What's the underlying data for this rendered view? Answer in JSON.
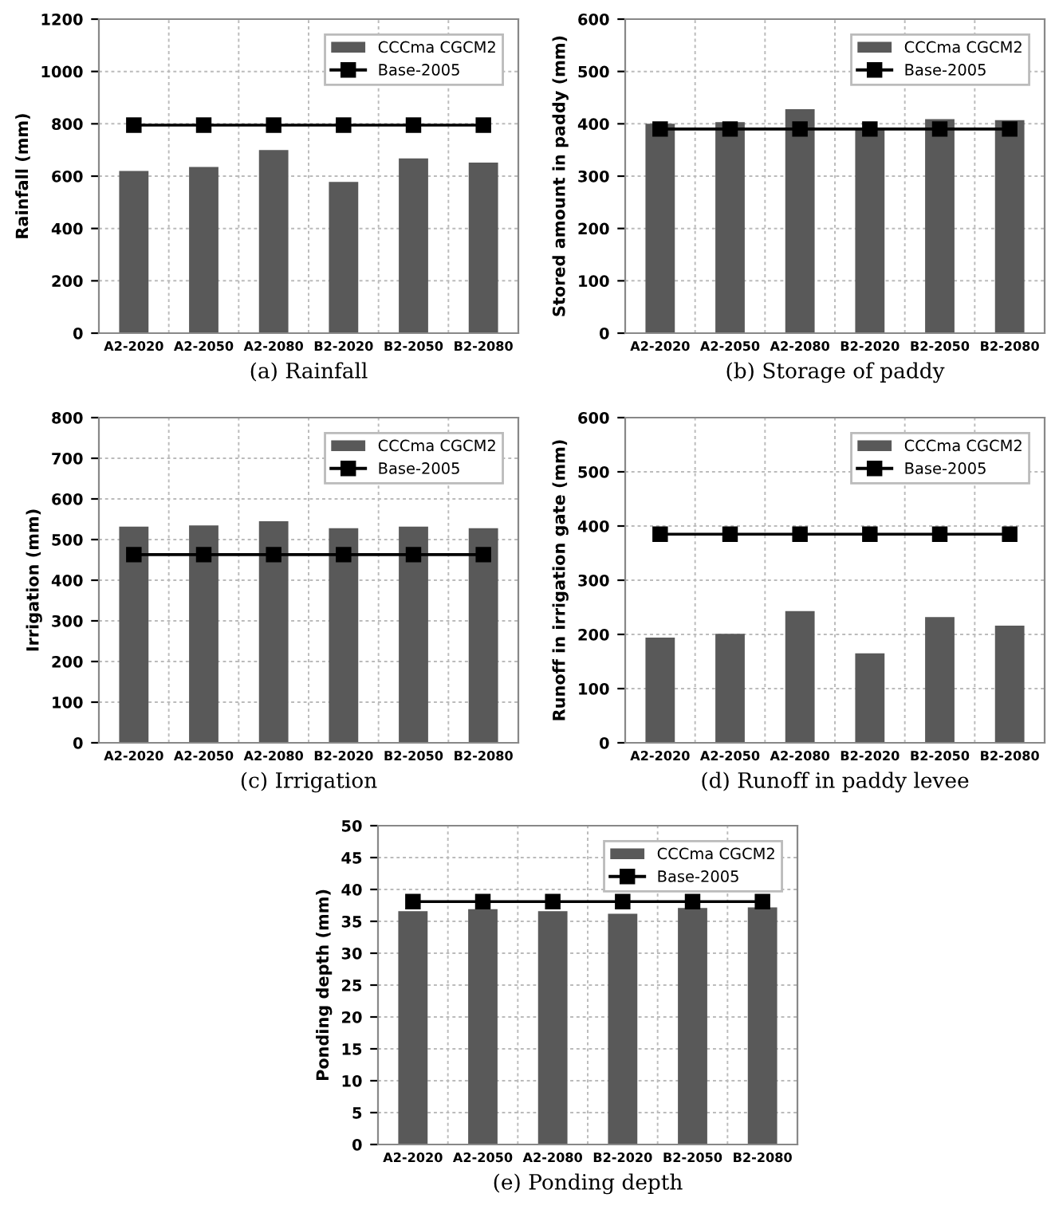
{
  "chart_data": [
    {
      "type": "bar",
      "title": "(a) Rainfall",
      "ylabel": "Rainfall (mm)",
      "categories": [
        "A2-2020",
        "A2-2050",
        "A2-2080",
        "B2-2020",
        "B2-2050",
        "B2-2080"
      ],
      "ylim": [
        0,
        1200
      ],
      "yticks": [
        0,
        200,
        400,
        600,
        800,
        1000,
        1200
      ],
      "grid": true,
      "legend": "top right",
      "series": [
        {
          "name": "CCCma CGCM2",
          "color": "#595959",
          "values": [
            620,
            635,
            700,
            578,
            668,
            652
          ]
        },
        {
          "name": "Base-2005",
          "type": "line",
          "color": "#000000",
          "marker": "square",
          "line_style": "solid",
          "values": [
            795,
            795,
            795,
            795,
            795,
            795
          ]
        }
      ]
    },
    {
      "type": "bar",
      "title": "(b) Storage of paddy",
      "ylabel": "Stored amount in paddy (mm)",
      "categories": [
        "A2-2020",
        "A2-2050",
        "A2-2080",
        "B2-2020",
        "B2-2050",
        "B2-2080"
      ],
      "ylim": [
        0,
        600
      ],
      "yticks": [
        0,
        100,
        200,
        300,
        400,
        500,
        600
      ],
      "grid": true,
      "legend": "top right",
      "series": [
        {
          "name": "CCCma CGCM2",
          "color": "#595959",
          "values": [
            400,
            403,
            428,
            390,
            409,
            407
          ]
        },
        {
          "name": "Base-2005",
          "type": "line",
          "color": "#000000",
          "marker": "square",
          "line_style": "solid",
          "values": [
            390,
            390,
            390,
            390,
            390,
            390
          ]
        }
      ]
    },
    {
      "type": "bar",
      "title": "(c) Irrigation",
      "ylabel": "Irrigation (mm)",
      "categories": [
        "A2-2020",
        "A2-2050",
        "A2-2080",
        "B2-2020",
        "B2-2050",
        "B2-2080"
      ],
      "ylim": [
        0,
        800
      ],
      "yticks": [
        0,
        100,
        200,
        300,
        400,
        500,
        600,
        700,
        800
      ],
      "grid": true,
      "legend": "top right",
      "series": [
        {
          "name": "CCCma CGCM2",
          "color": "#595959",
          "values": [
            532,
            535,
            545,
            528,
            532,
            528
          ]
        },
        {
          "name": "Base-2005",
          "type": "line",
          "color": "#000000",
          "marker": "square",
          "line_style": "solid",
          "values": [
            463,
            463,
            463,
            463,
            463,
            463
          ]
        }
      ]
    },
    {
      "type": "bar",
      "title": "(d) Runoff in paddy levee",
      "ylabel": "Runoff in irrigation gate (mm)",
      "categories": [
        "A2-2020",
        "A2-2050",
        "A2-2080",
        "B2-2020",
        "B2-2050",
        "B2-2080"
      ],
      "ylim": [
        0,
        600
      ],
      "yticks": [
        0,
        100,
        200,
        300,
        400,
        500,
        600
      ],
      "grid": true,
      "legend": "top right",
      "series": [
        {
          "name": "CCCma CGCM2",
          "color": "#595959",
          "values": [
            194,
            201,
            243,
            165,
            232,
            216
          ]
        },
        {
          "name": "Base-2005",
          "type": "line",
          "color": "#000000",
          "marker": "square",
          "line_style": "solid",
          "values": [
            385,
            385,
            385,
            385,
            385,
            385
          ]
        }
      ]
    },
    {
      "type": "bar",
      "title": "(e) Ponding depth",
      "ylabel": "Ponding depth (mm)",
      "categories": [
        "A2-2020",
        "A2-2050",
        "A2-2080",
        "B2-2020",
        "B2-2050",
        "B2-2080"
      ],
      "ylim": [
        0,
        50
      ],
      "yticks": [
        0,
        5,
        10,
        15,
        20,
        25,
        30,
        35,
        40,
        45,
        50
      ],
      "grid": true,
      "legend": "top right",
      "series": [
        {
          "name": "CCCma CGCM2",
          "color": "#595959",
          "values": [
            36.6,
            36.9,
            36.6,
            36.2,
            37.1,
            37.2
          ]
        },
        {
          "name": "Base-2005",
          "type": "line",
          "color": "#000000",
          "marker": "square",
          "line_style": "solid",
          "values": [
            38.1,
            38.1,
            38.1,
            38.1,
            38.1,
            38.1
          ]
        }
      ]
    }
  ]
}
